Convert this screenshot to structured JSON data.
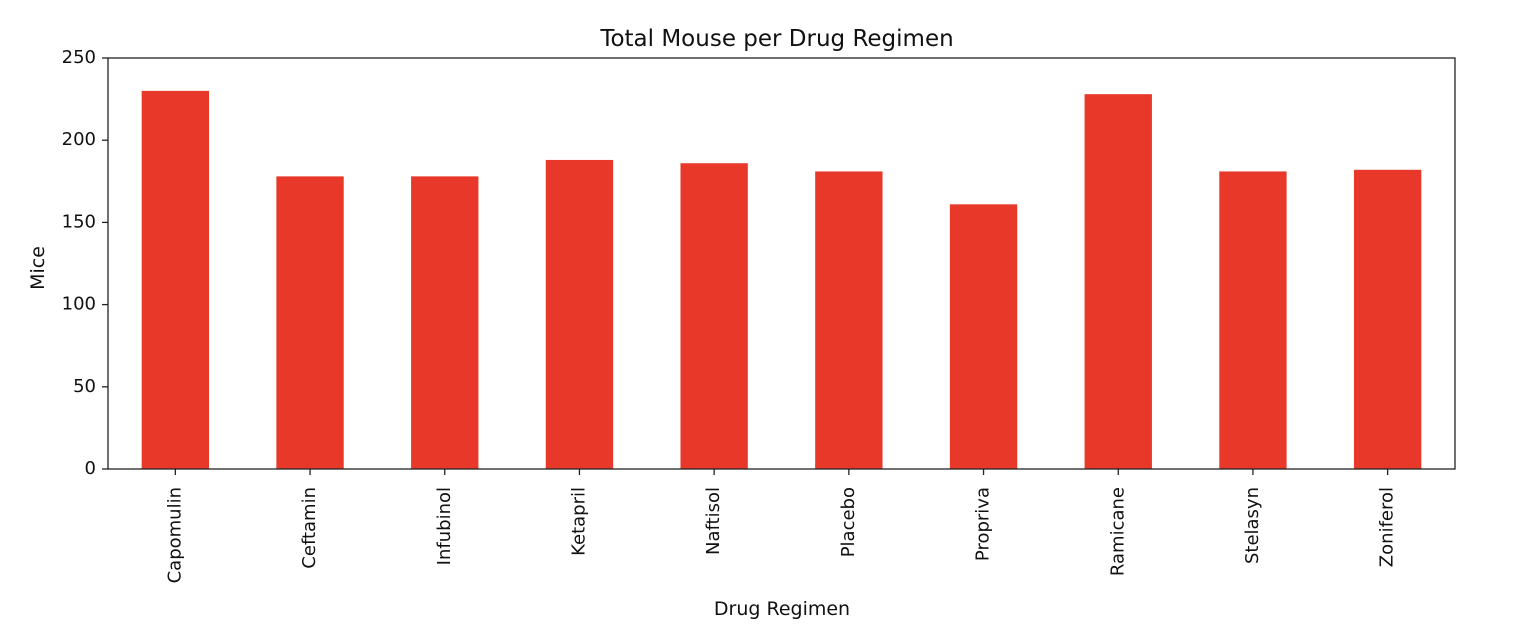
{
  "chart_data": {
    "type": "bar",
    "title": "Total Mouse per Drug Regimen",
    "xlabel": "Drug Regimen",
    "ylabel": "Mice",
    "categories": [
      "Capomulin",
      "Ceftamin",
      "Infubinol",
      "Ketapril",
      "Naftisol",
      "Placebo",
      "Propriva",
      "Ramicane",
      "Stelasyn",
      "Zoniferol"
    ],
    "values": [
      230,
      178,
      178,
      188,
      186,
      181,
      161,
      228,
      181,
      182
    ],
    "ylim": [
      0,
      250
    ],
    "yticks": [
      0,
      50,
      100,
      150,
      200,
      250
    ],
    "ytick_labels": [
      "0",
      "50",
      "100",
      "150",
      "200",
      "250"
    ],
    "bar_color": "#e8382a",
    "grid": false,
    "legend": false
  }
}
